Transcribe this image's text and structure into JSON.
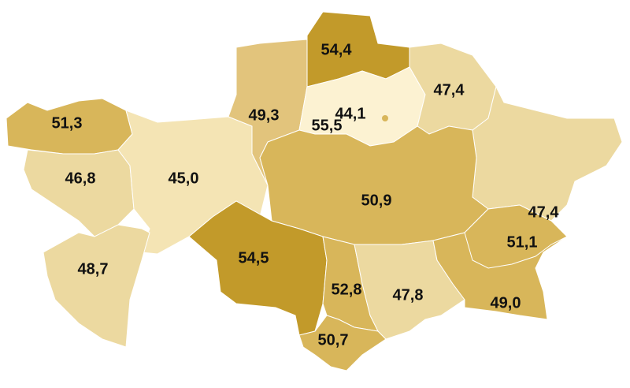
{
  "chart_data": {
    "type": "choropleth",
    "colors": {
      "very_low": "#fcf2d2",
      "low": "#f4e4b4",
      "mid_low": "#ecd9a0",
      "mid": "#e2c47c",
      "mid_high": "#d8b65a",
      "high": "#c29a2a"
    },
    "regions": [
      {
        "id": "west-kazakhstan",
        "value": "51,3",
        "level": "mid_high"
      },
      {
        "id": "atyrau",
        "value": "46,8",
        "level": "mid_low"
      },
      {
        "id": "aktobe",
        "value": "45,0",
        "level": "low"
      },
      {
        "id": "mangystau",
        "value": "48,7",
        "level": "mid_low"
      },
      {
        "id": "kostanay",
        "value": "49,3",
        "level": "mid"
      },
      {
        "id": "north-kazakhstan",
        "value": "54,4",
        "level": "high"
      },
      {
        "id": "akmola",
        "value": "44,1",
        "level": "very_low"
      },
      {
        "id": "nur-sultan",
        "value": "55,5",
        "level": "mid_high"
      },
      {
        "id": "pavlodar",
        "value": "47,4",
        "level": "mid_low"
      },
      {
        "id": "east-kazakhstan",
        "value": "47,4",
        "level": "mid_low"
      },
      {
        "id": "karaganda",
        "value": "50,9",
        "level": "mid_high"
      },
      {
        "id": "kyzylorda",
        "value": "54,5",
        "level": "high"
      },
      {
        "id": "turkestan",
        "value": "52,8",
        "level": "mid_high"
      },
      {
        "id": "shymkent",
        "value": "50,7",
        "level": "mid_high"
      },
      {
        "id": "zhambyl",
        "value": "47,8",
        "level": "mid_low"
      },
      {
        "id": "almaty-region",
        "value": "49,0",
        "level": "mid_high"
      },
      {
        "id": "almaty-city",
        "value": "51,1",
        "level": "mid_high"
      }
    ]
  }
}
